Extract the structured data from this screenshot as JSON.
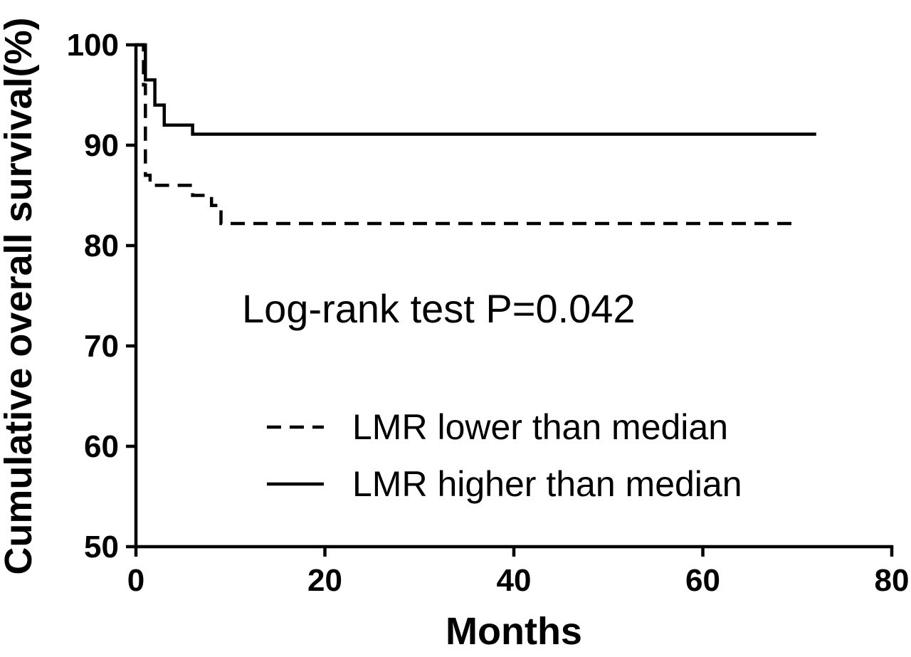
{
  "chart_data": {
    "type": "line",
    "step": true,
    "xlabel": "Months",
    "ylabel": "Cumulative overall survival(%)",
    "xlim": [
      0,
      80
    ],
    "ylim": [
      50,
      100
    ],
    "xticks": [
      0,
      20,
      40,
      60,
      80
    ],
    "yticks": [
      50,
      60,
      70,
      80,
      90,
      100
    ],
    "annotation": "Log-rank test P=0.042",
    "legend_position": "lower-center",
    "series": [
      {
        "name": "LMR lower than median",
        "style": "dashed",
        "color": "#000000",
        "x": [
          0,
          0.8,
          0.8,
          1.0,
          1.0,
          1.5,
          1.5,
          6.0,
          6.0,
          8.0,
          8.0,
          9.0,
          9.0,
          70.0
        ],
        "y": [
          100,
          100,
          96.0,
          96.0,
          87.0,
          87.0,
          86.0,
          86.0,
          85.0,
          85.0,
          84.0,
          84.0,
          82.2,
          82.2
        ]
      },
      {
        "name": "LMR higher than median",
        "style": "solid",
        "color": "#000000",
        "x": [
          0,
          1.0,
          1.0,
          2.0,
          2.0,
          3.0,
          3.0,
          6.0,
          6.0,
          72.0
        ],
        "y": [
          100,
          100,
          96.5,
          96.5,
          94.0,
          94.0,
          92.0,
          92.0,
          91.1,
          91.1
        ]
      }
    ]
  }
}
